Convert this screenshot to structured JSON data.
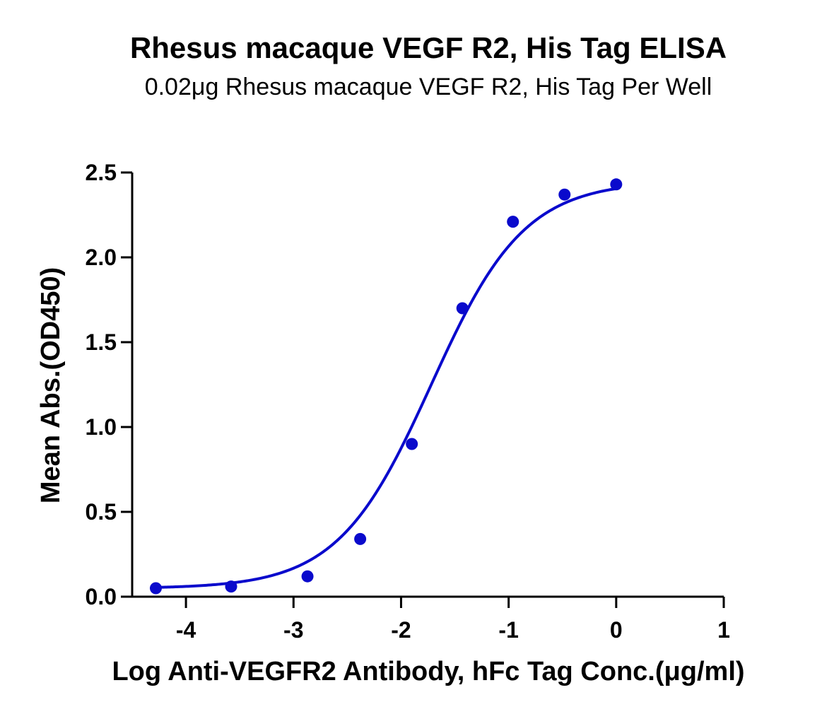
{
  "chart_data": {
    "type": "line",
    "title": "Rhesus macaque VEGF R2, His Tag ELISA",
    "subtitle": "0.02μg Rhesus macaque VEGF R2, His Tag Per Well",
    "xlabel": "Log Anti-VEGFR2 Antibody, hFc Tag Conc.(μg/ml)",
    "ylabel": "Mean Abs.(OD450)",
    "xlim": [
      -4.5,
      1
    ],
    "ylim": [
      0,
      2.5
    ],
    "x_ticks": [
      "-4",
      "-3",
      "-2",
      "-1",
      "0",
      "1"
    ],
    "y_ticks": [
      "0.0",
      "0.5",
      "1.0",
      "1.5",
      "2.0",
      "2.5"
    ],
    "grid": false,
    "legend": "none",
    "series": [
      {
        "x": [
          -4.28,
          -3.58,
          -2.87,
          -2.38,
          -1.9,
          -1.43,
          -0.96,
          -0.48,
          0
        ],
        "y": [
          0.05,
          0.06,
          0.12,
          0.34,
          0.9,
          1.7,
          2.21,
          2.37,
          2.43
        ],
        "color": "#0A0ACC",
        "fit": "sigmoidal"
      }
    ]
  }
}
